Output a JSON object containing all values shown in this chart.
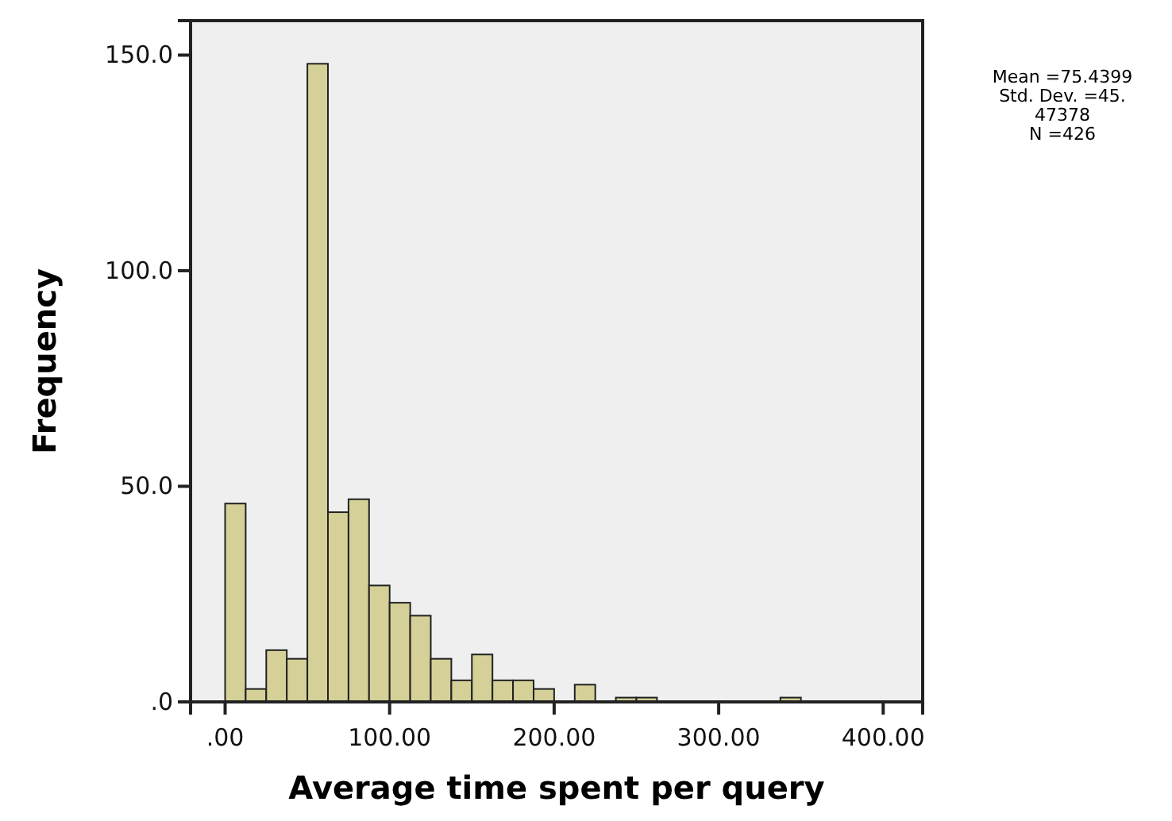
{
  "chart_data": {
    "type": "histogram",
    "xlabel": "Average time spent per query",
    "ylabel": "Frequency",
    "bins": [
      0,
      12.5,
      25,
      37.5,
      50,
      62.5,
      75,
      87.5,
      100,
      112.5,
      125,
      137.5,
      150,
      162.5,
      175,
      187.5,
      200,
      212.5,
      225,
      237.5,
      250,
      262.5,
      275,
      287.5,
      300,
      312.5,
      325,
      337.5,
      350
    ],
    "values": [
      46,
      3,
      12,
      10,
      148,
      44,
      47,
      27,
      23,
      20,
      10,
      5,
      11,
      5,
      5,
      3,
      0,
      4,
      0,
      1,
      1,
      0,
      0,
      0,
      0,
      0,
      0,
      1
    ],
    "color": "#d4d098",
    "xlim": [
      -21,
      424
    ],
    "xticks": [
      {
        "value": 0,
        "label": ".00"
      },
      {
        "value": 100,
        "label": "100.00"
      },
      {
        "value": 200,
        "label": "200.00"
      },
      {
        "value": 300,
        "label": "300.00"
      },
      {
        "value": 400,
        "label": "400.00"
      }
    ],
    "ylim": [
      0,
      158
    ],
    "yticks": [
      {
        "value": 0,
        "label": ".0"
      },
      {
        "value": 50,
        "label": "50.0"
      },
      {
        "value": 100,
        "label": "100.0"
      },
      {
        "value": 150,
        "label": "150.0"
      }
    ],
    "grid": false,
    "annotations": [
      "Mean =75.4399",
      "Std. Dev. =45.",
      "47378",
      "N =426"
    ]
  }
}
